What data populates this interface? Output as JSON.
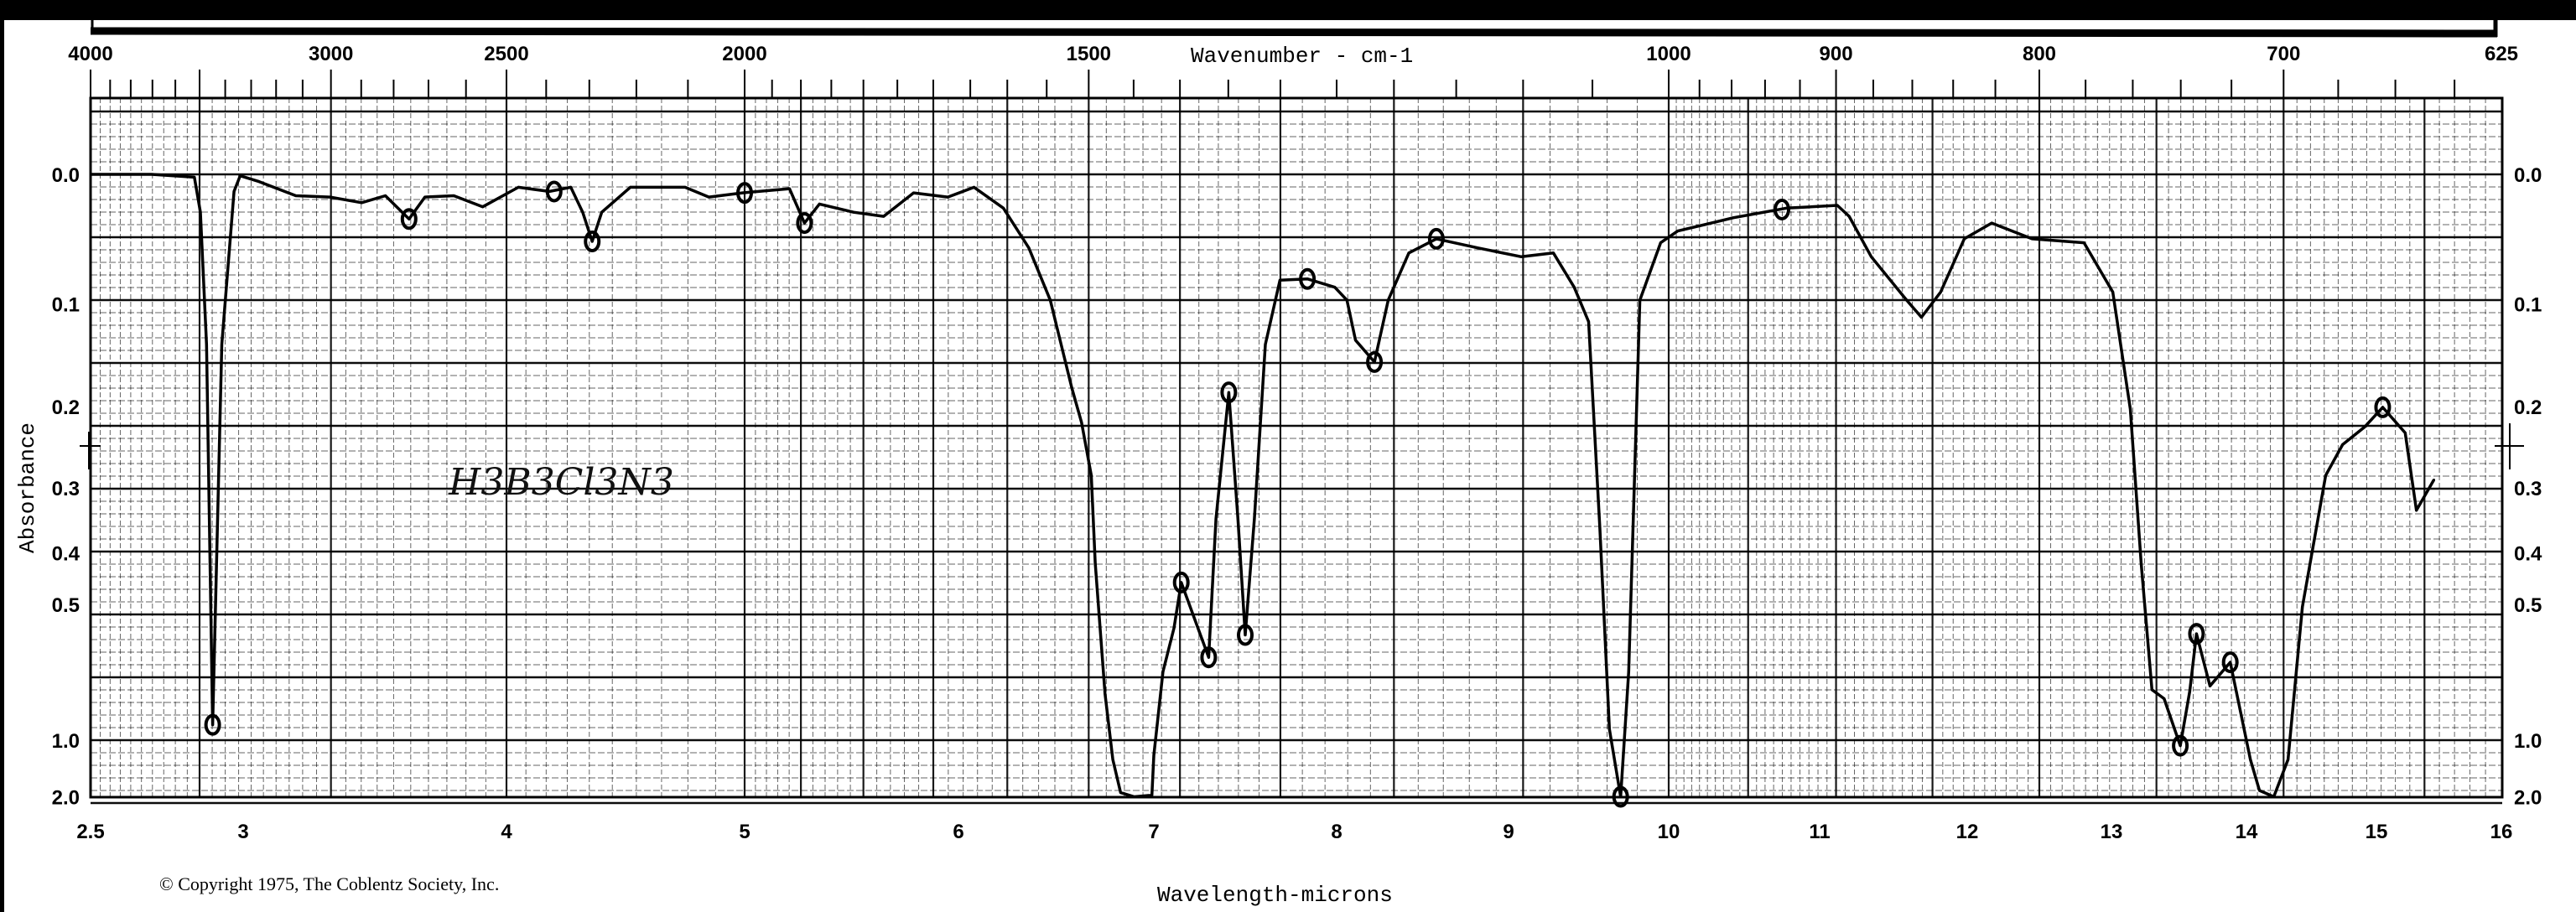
{
  "chart_data": {
    "type": "line",
    "xlabel": "Wavelength-microns",
    "x2label": "Wavenumber - cm-1",
    "ylabel": "Absorbance",
    "xlim": [
      2.5,
      16
    ],
    "ylim": [
      0.0,
      2.0
    ],
    "y_scale": "transmittance-linear (absorbance labels)",
    "grid": true,
    "x_ticks": [
      "2.5",
      "3",
      "4",
      "5",
      "6",
      "7",
      "8",
      "9",
      "10",
      "11",
      "12",
      "13",
      "14",
      "15",
      "16"
    ],
    "x2_ticks": [
      "4000",
      "3000",
      "2500",
      "2000",
      "1500",
      "1000",
      "900",
      "800",
      "700",
      "625"
    ],
    "y_ticks": [
      "0.0",
      "0.1",
      "0.2",
      "0.3",
      "0.4",
      "0.5",
      "1.0",
      "2.0"
    ],
    "annotation": "H3B3Cl3N3",
    "copyright": "© Copyright 1975, The Coblentz Society, Inc.",
    "series": [
      {
        "points": [
          [
            2.5,
            0.0
          ],
          [
            2.7,
            0.0
          ],
          [
            2.84,
            0.002
          ],
          [
            2.86,
            0.027
          ],
          [
            2.88,
            0.137
          ],
          [
            2.9,
            0.905
          ],
          [
            2.93,
            0.137
          ],
          [
            2.97,
            0.012
          ],
          [
            2.99,
            0.001
          ],
          [
            3.06,
            0.005
          ],
          [
            3.2,
            0.015
          ],
          [
            3.33,
            0.016
          ],
          [
            3.45,
            0.02
          ],
          [
            3.54,
            0.015
          ],
          [
            3.63,
            0.032
          ],
          [
            3.69,
            0.016
          ],
          [
            3.8,
            0.015
          ],
          [
            3.91,
            0.023
          ],
          [
            4.05,
            0.009
          ],
          [
            4.18,
            0.012
          ],
          [
            4.27,
            0.009
          ],
          [
            4.32,
            0.027
          ],
          [
            4.36,
            0.049
          ],
          [
            4.4,
            0.027
          ],
          [
            4.52,
            0.009
          ],
          [
            4.75,
            0.009
          ],
          [
            4.85,
            0.016
          ],
          [
            4.99,
            0.013
          ],
          [
            5.21,
            0.01
          ],
          [
            5.28,
            0.035
          ],
          [
            5.35,
            0.021
          ],
          [
            5.51,
            0.027
          ],
          [
            5.65,
            0.03
          ],
          [
            5.79,
            0.013
          ],
          [
            5.95,
            0.016
          ],
          [
            6.08,
            0.009
          ],
          [
            6.23,
            0.024
          ],
          [
            6.36,
            0.054
          ],
          [
            6.47,
            0.097
          ],
          [
            6.58,
            0.18
          ],
          [
            6.63,
            0.218
          ],
          [
            6.68,
            0.283
          ],
          [
            6.7,
            0.418
          ],
          [
            6.75,
            0.76
          ],
          [
            6.79,
            1.16
          ],
          [
            6.83,
            1.78
          ],
          [
            6.9,
            2.0
          ],
          [
            6.99,
            1.9
          ],
          [
            7.0,
            1.12
          ],
          [
            7.05,
            0.68
          ],
          [
            7.11,
            0.556
          ],
          [
            7.15,
            0.455
          ],
          [
            7.3,
            0.635
          ],
          [
            7.34,
            0.345
          ],
          [
            7.41,
            0.185
          ],
          [
            7.46,
            0.345
          ],
          [
            7.5,
            0.573
          ],
          [
            7.55,
            0.345
          ],
          [
            7.61,
            0.137
          ],
          [
            7.69,
            0.08
          ],
          [
            7.84,
            0.079
          ],
          [
            7.99,
            0.086
          ],
          [
            8.06,
            0.097
          ],
          [
            8.11,
            0.133
          ],
          [
            8.22,
            0.154
          ],
          [
            8.3,
            0.097
          ],
          [
            8.42,
            0.058
          ],
          [
            8.58,
            0.047
          ],
          [
            8.82,
            0.054
          ],
          [
            9.08,
            0.061
          ],
          [
            9.28,
            0.058
          ],
          [
            9.41,
            0.086
          ],
          [
            9.5,
            0.116
          ],
          [
            9.57,
            0.359
          ],
          [
            9.63,
            0.93
          ],
          [
            9.7,
            2.0
          ],
          [
            9.75,
            0.68
          ],
          [
            9.82,
            0.097
          ],
          [
            9.95,
            0.05
          ],
          [
            10.06,
            0.041
          ],
          [
            10.43,
            0.031
          ],
          [
            10.78,
            0.024
          ],
          [
            11.12,
            0.022
          ],
          [
            11.2,
            0.03
          ],
          [
            11.35,
            0.061
          ],
          [
            11.59,
            0.097
          ],
          [
            11.69,
            0.112
          ],
          [
            11.82,
            0.09
          ],
          [
            11.98,
            0.047
          ],
          [
            12.17,
            0.035
          ],
          [
            12.45,
            0.047
          ],
          [
            12.81,
            0.05
          ],
          [
            13.01,
            0.09
          ],
          [
            13.14,
            0.203
          ],
          [
            13.22,
            0.418
          ],
          [
            13.3,
            0.744
          ],
          [
            13.39,
            0.78
          ],
          [
            13.51,
            1.04
          ],
          [
            13.58,
            0.75
          ],
          [
            13.63,
            0.57
          ],
          [
            13.73,
            0.73
          ],
          [
            13.88,
            0.65
          ],
          [
            14.03,
            1.16
          ],
          [
            14.1,
            1.7
          ],
          [
            14.21,
            2.0
          ],
          [
            14.32,
            1.16
          ],
          [
            14.43,
            0.506
          ],
          [
            14.61,
            0.283
          ],
          [
            14.74,
            0.244
          ],
          [
            14.91,
            0.223
          ],
          [
            15.05,
            0.201
          ],
          [
            15.23,
            0.23
          ],
          [
            15.32,
            0.332
          ],
          [
            15.46,
            0.289
          ]
        ]
      }
    ],
    "circled_points": [
      [
        2.9,
        0.905
      ],
      [
        3.63,
        0.032
      ],
      [
        4.2,
        0.012
      ],
      [
        4.36,
        0.049
      ],
      [
        5.0,
        0.013
      ],
      [
        5.28,
        0.035
      ],
      [
        7.15,
        0.455
      ],
      [
        7.3,
        0.635
      ],
      [
        7.41,
        0.185
      ],
      [
        7.5,
        0.573
      ],
      [
        7.84,
        0.079
      ],
      [
        8.22,
        0.154
      ],
      [
        8.58,
        0.047
      ],
      [
        9.7,
        2.0
      ],
      [
        10.75,
        0.025
      ],
      [
        13.51,
        1.04
      ],
      [
        13.63,
        0.57
      ],
      [
        13.88,
        0.65
      ],
      [
        15.05,
        0.201
      ]
    ]
  }
}
